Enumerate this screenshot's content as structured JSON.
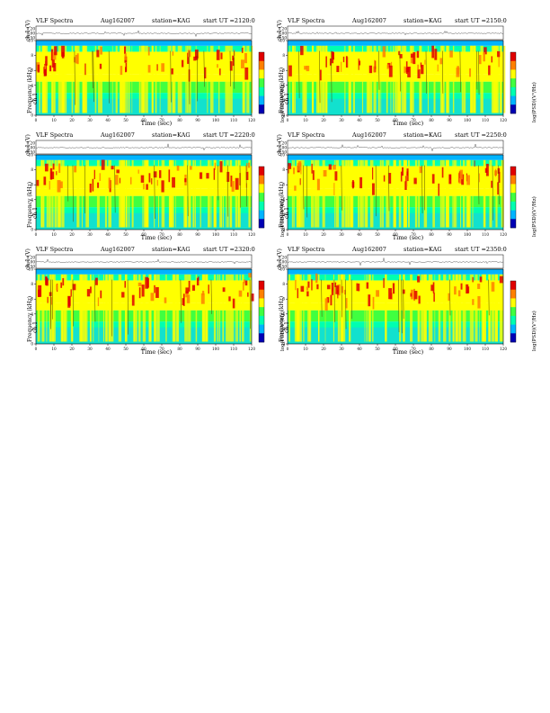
{
  "chart_data": [
    {
      "type": "heatmap",
      "title": "VLF Spectra",
      "date": "Aug162007",
      "station": "station=KAG",
      "ut": "start  UT  =2120:0",
      "xlabel": "Time  (sec)",
      "ylabel": "Frequency  (kHz)",
      "ylabel2": "ch.1",
      "top_ylabel": "ch.1 (V)",
      "colorbar_label": "log(PSD)(V²/Hz)",
      "xlim": [
        0,
        120
      ],
      "ylim": [
        0,
        10
      ],
      "x_ticks": [
        "0",
        "10",
        "20",
        "30",
        "40",
        "50",
        "60",
        "70",
        "80",
        "90",
        "100",
        "110",
        "120"
      ],
      "y_ticks": [
        "0",
        "2",
        "4",
        "6",
        "8",
        "10"
      ],
      "top_ticks": [
        "0.20",
        "0.00",
        "-0.50"
      ],
      "colors": [
        "#0000b4",
        "#00b4ff",
        "#00ffb0",
        "#40ff40",
        "#ffff00",
        "#ff8000",
        "#e00000"
      ]
    },
    {
      "type": "heatmap",
      "title": "VLF Spectra",
      "date": "Aug162007",
      "station": "station=KAG",
      "ut": "start  UT  =2150:0",
      "xlabel": "Time  (sec)",
      "ylabel": "Frequency  (kHz)",
      "ylabel2": "ch.1",
      "top_ylabel": "ch.1 (V)",
      "colorbar_label": "log(PSD)(V²/Hz)",
      "xlim": [
        0,
        120
      ],
      "ylim": [
        0,
        10
      ],
      "x_ticks": [
        "0",
        "10",
        "20",
        "30",
        "40",
        "50",
        "60",
        "70",
        "80",
        "90",
        "100",
        "110",
        "120"
      ],
      "y_ticks": [
        "0",
        "2",
        "4",
        "6",
        "8",
        "10"
      ],
      "top_ticks": [
        "0.20",
        "0.00",
        "-0.50"
      ],
      "colors": [
        "#0000b4",
        "#00b4ff",
        "#00ffb0",
        "#40ff40",
        "#ffff00",
        "#ff8000",
        "#e00000"
      ]
    },
    {
      "type": "heatmap",
      "title": "VLF Spectra",
      "date": "Aug162007",
      "station": "station=KAG",
      "ut": "start  UT  =2220:0",
      "xlabel": "Time  (sec)",
      "ylabel": "Frequency  (kHz)",
      "ylabel2": "ch.1",
      "top_ylabel": "ch.1 (V)",
      "colorbar_label": "log(PSD)(V²/Hz)",
      "xlim": [
        0,
        120
      ],
      "ylim": [
        0,
        10
      ],
      "x_ticks": [
        "0",
        "10",
        "20",
        "30",
        "40",
        "50",
        "60",
        "70",
        "80",
        "90",
        "100",
        "110",
        "120"
      ],
      "y_ticks": [
        "0",
        "2",
        "4",
        "6",
        "8",
        "10"
      ],
      "top_ticks": [
        "0.20",
        "0.00",
        "-0.50"
      ],
      "colors": [
        "#0000b4",
        "#00b4ff",
        "#00ffb0",
        "#40ff40",
        "#ffff00",
        "#ff8000",
        "#e00000"
      ]
    },
    {
      "type": "heatmap",
      "title": "VLF Spectra",
      "date": "Aug162007",
      "station": "station=KAG",
      "ut": "start  UT  =2250:0",
      "xlabel": "Time  (sec)",
      "ylabel": "Frequency  (kHz)",
      "ylabel2": "ch.1",
      "top_ylabel": "ch.1 (V)",
      "colorbar_label": "log(PSD)(V²/Hz)",
      "xlim": [
        0,
        120
      ],
      "ylim": [
        0,
        10
      ],
      "x_ticks": [
        "0",
        "10",
        "20",
        "30",
        "40",
        "50",
        "60",
        "70",
        "80",
        "90",
        "100",
        "110",
        "120"
      ],
      "y_ticks": [
        "0",
        "2",
        "4",
        "6",
        "8",
        "10"
      ],
      "top_ticks": [
        "0.20",
        "0.00",
        "-0.50"
      ],
      "colors": [
        "#0000b4",
        "#00b4ff",
        "#00ffb0",
        "#40ff40",
        "#ffff00",
        "#ff8000",
        "#e00000"
      ]
    },
    {
      "type": "heatmap",
      "title": "VLF Spectra",
      "date": "Aug162007",
      "station": "station=KAG",
      "ut": "start  UT  =2320:0",
      "xlabel": "Time  (sec)",
      "ylabel": "Frequency  (kHz)",
      "ylabel2": "ch.1",
      "top_ylabel": "ch.1 (V)",
      "colorbar_label": "log(PSD)(V²/Hz)",
      "xlim": [
        0,
        120
      ],
      "ylim": [
        0,
        10
      ],
      "x_ticks": [
        "0",
        "10",
        "20",
        "30",
        "40",
        "50",
        "60",
        "70",
        "80",
        "90",
        "100",
        "110",
        "120"
      ],
      "y_ticks": [
        "0",
        "2",
        "4",
        "6",
        "8",
        "10"
      ],
      "top_ticks": [
        "0.20",
        "0.00",
        "-0.50"
      ],
      "colors": [
        "#0000b4",
        "#00b4ff",
        "#00ffb0",
        "#40ff40",
        "#ffff00",
        "#ff8000",
        "#e00000"
      ]
    },
    {
      "type": "heatmap",
      "title": "VLF Spectra",
      "date": "Aug162007",
      "station": "station=KAG",
      "ut": "start  UT  =2350:0",
      "xlabel": "Time  (sec)",
      "ylabel": "Frequency  (kHz)",
      "ylabel2": "ch.1",
      "top_ylabel": "ch.1 (V)",
      "colorbar_label": "log(PSD)(V²/Hz)",
      "xlim": [
        0,
        120
      ],
      "ylim": [
        0,
        10
      ],
      "x_ticks": [
        "0",
        "10",
        "20",
        "30",
        "40",
        "50",
        "60",
        "70",
        "80",
        "90",
        "100",
        "110",
        "120"
      ],
      "y_ticks": [
        "0",
        "2",
        "4",
        "6",
        "8",
        "10"
      ],
      "top_ticks": [
        "0.20",
        "0.00",
        "-0.50"
      ],
      "colors": [
        "#0000b4",
        "#00b4ff",
        "#00ffb0",
        "#40ff40",
        "#ffff00",
        "#ff8000",
        "#e00000"
      ]
    }
  ]
}
